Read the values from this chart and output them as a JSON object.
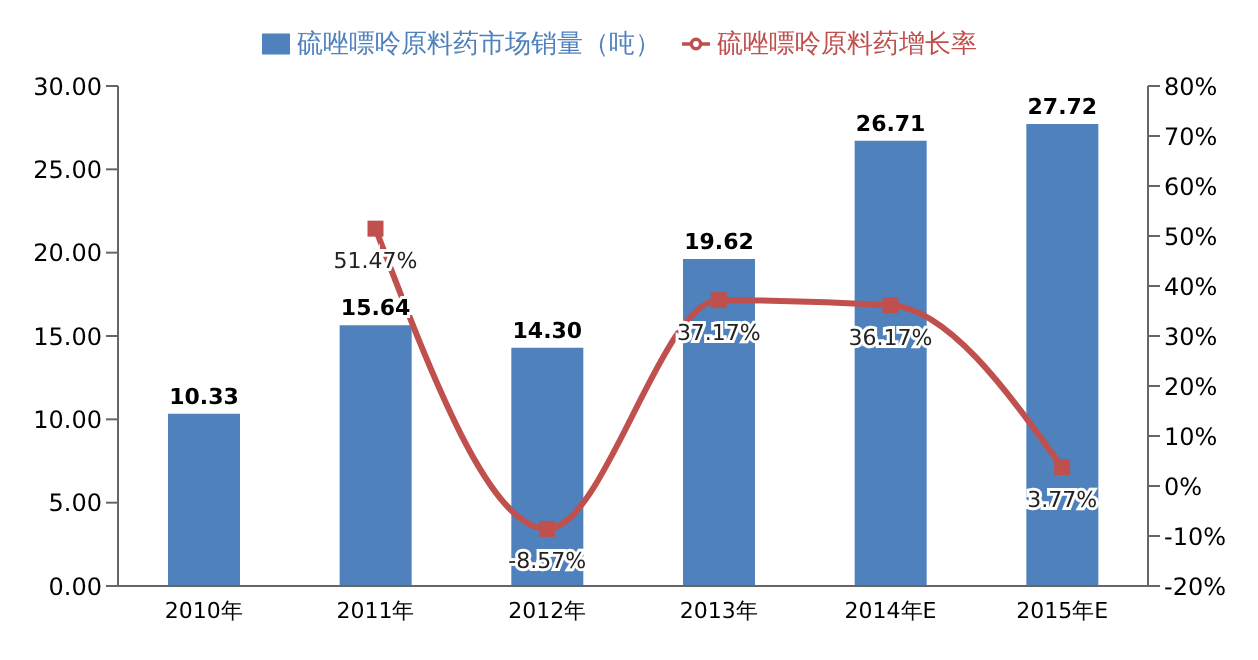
{
  "chart_data": {
    "type": "bar",
    "categories": [
      "2010年",
      "2011年",
      "2012年",
      "2013年",
      "2014年E",
      "2015年E"
    ],
    "series": [
      {
        "name": "硫唑嘌呤原料药市场销量（吨）",
        "color": "#4f81bd",
        "values": [
          10.33,
          15.64,
          14.3,
          19.62,
          26.71,
          27.72
        ],
        "value_labels": [
          "10.33",
          "15.64",
          "14.30",
          "19.62",
          "26.71",
          "27.72"
        ]
      },
      {
        "type": "line",
        "axis": "y2",
        "name": "硫唑嘌呤原料药增长率",
        "color": "#c0504d",
        "values": [
          null,
          51.47,
          -8.57,
          37.17,
          36.17,
          3.77
        ],
        "value_labels": [
          null,
          "51.47%",
          "-8.57%",
          "37.17%",
          "36.17%",
          "3.77%"
        ]
      }
    ],
    "ylim": [
      0,
      30
    ],
    "yticks": [
      {
        "value": 0,
        "label": "0.00"
      },
      {
        "value": 5,
        "label": "5.00"
      },
      {
        "value": 10,
        "label": "10.00"
      },
      {
        "value": 15,
        "label": "15.00"
      },
      {
        "value": 20,
        "label": "20.00"
      },
      {
        "value": 25,
        "label": "25.00"
      },
      {
        "value": 30,
        "label": "30.00"
      }
    ],
    "y2lim": [
      -20,
      80
    ],
    "y2ticks": [
      {
        "value": -20,
        "label": "-20%"
      },
      {
        "value": -10,
        "label": "-10%"
      },
      {
        "value": 0,
        "label": "0%"
      },
      {
        "value": 10,
        "label": "10%"
      },
      {
        "value": 20,
        "label": "20%"
      },
      {
        "value": 30,
        "label": "30%"
      },
      {
        "value": 40,
        "label": "40%"
      },
      {
        "value": 50,
        "label": "50%"
      },
      {
        "value": 60,
        "label": "60%"
      },
      {
        "value": 70,
        "label": "70%"
      },
      {
        "value": 80,
        "label": "80%"
      }
    ],
    "legend": "top",
    "marker": "square"
  }
}
